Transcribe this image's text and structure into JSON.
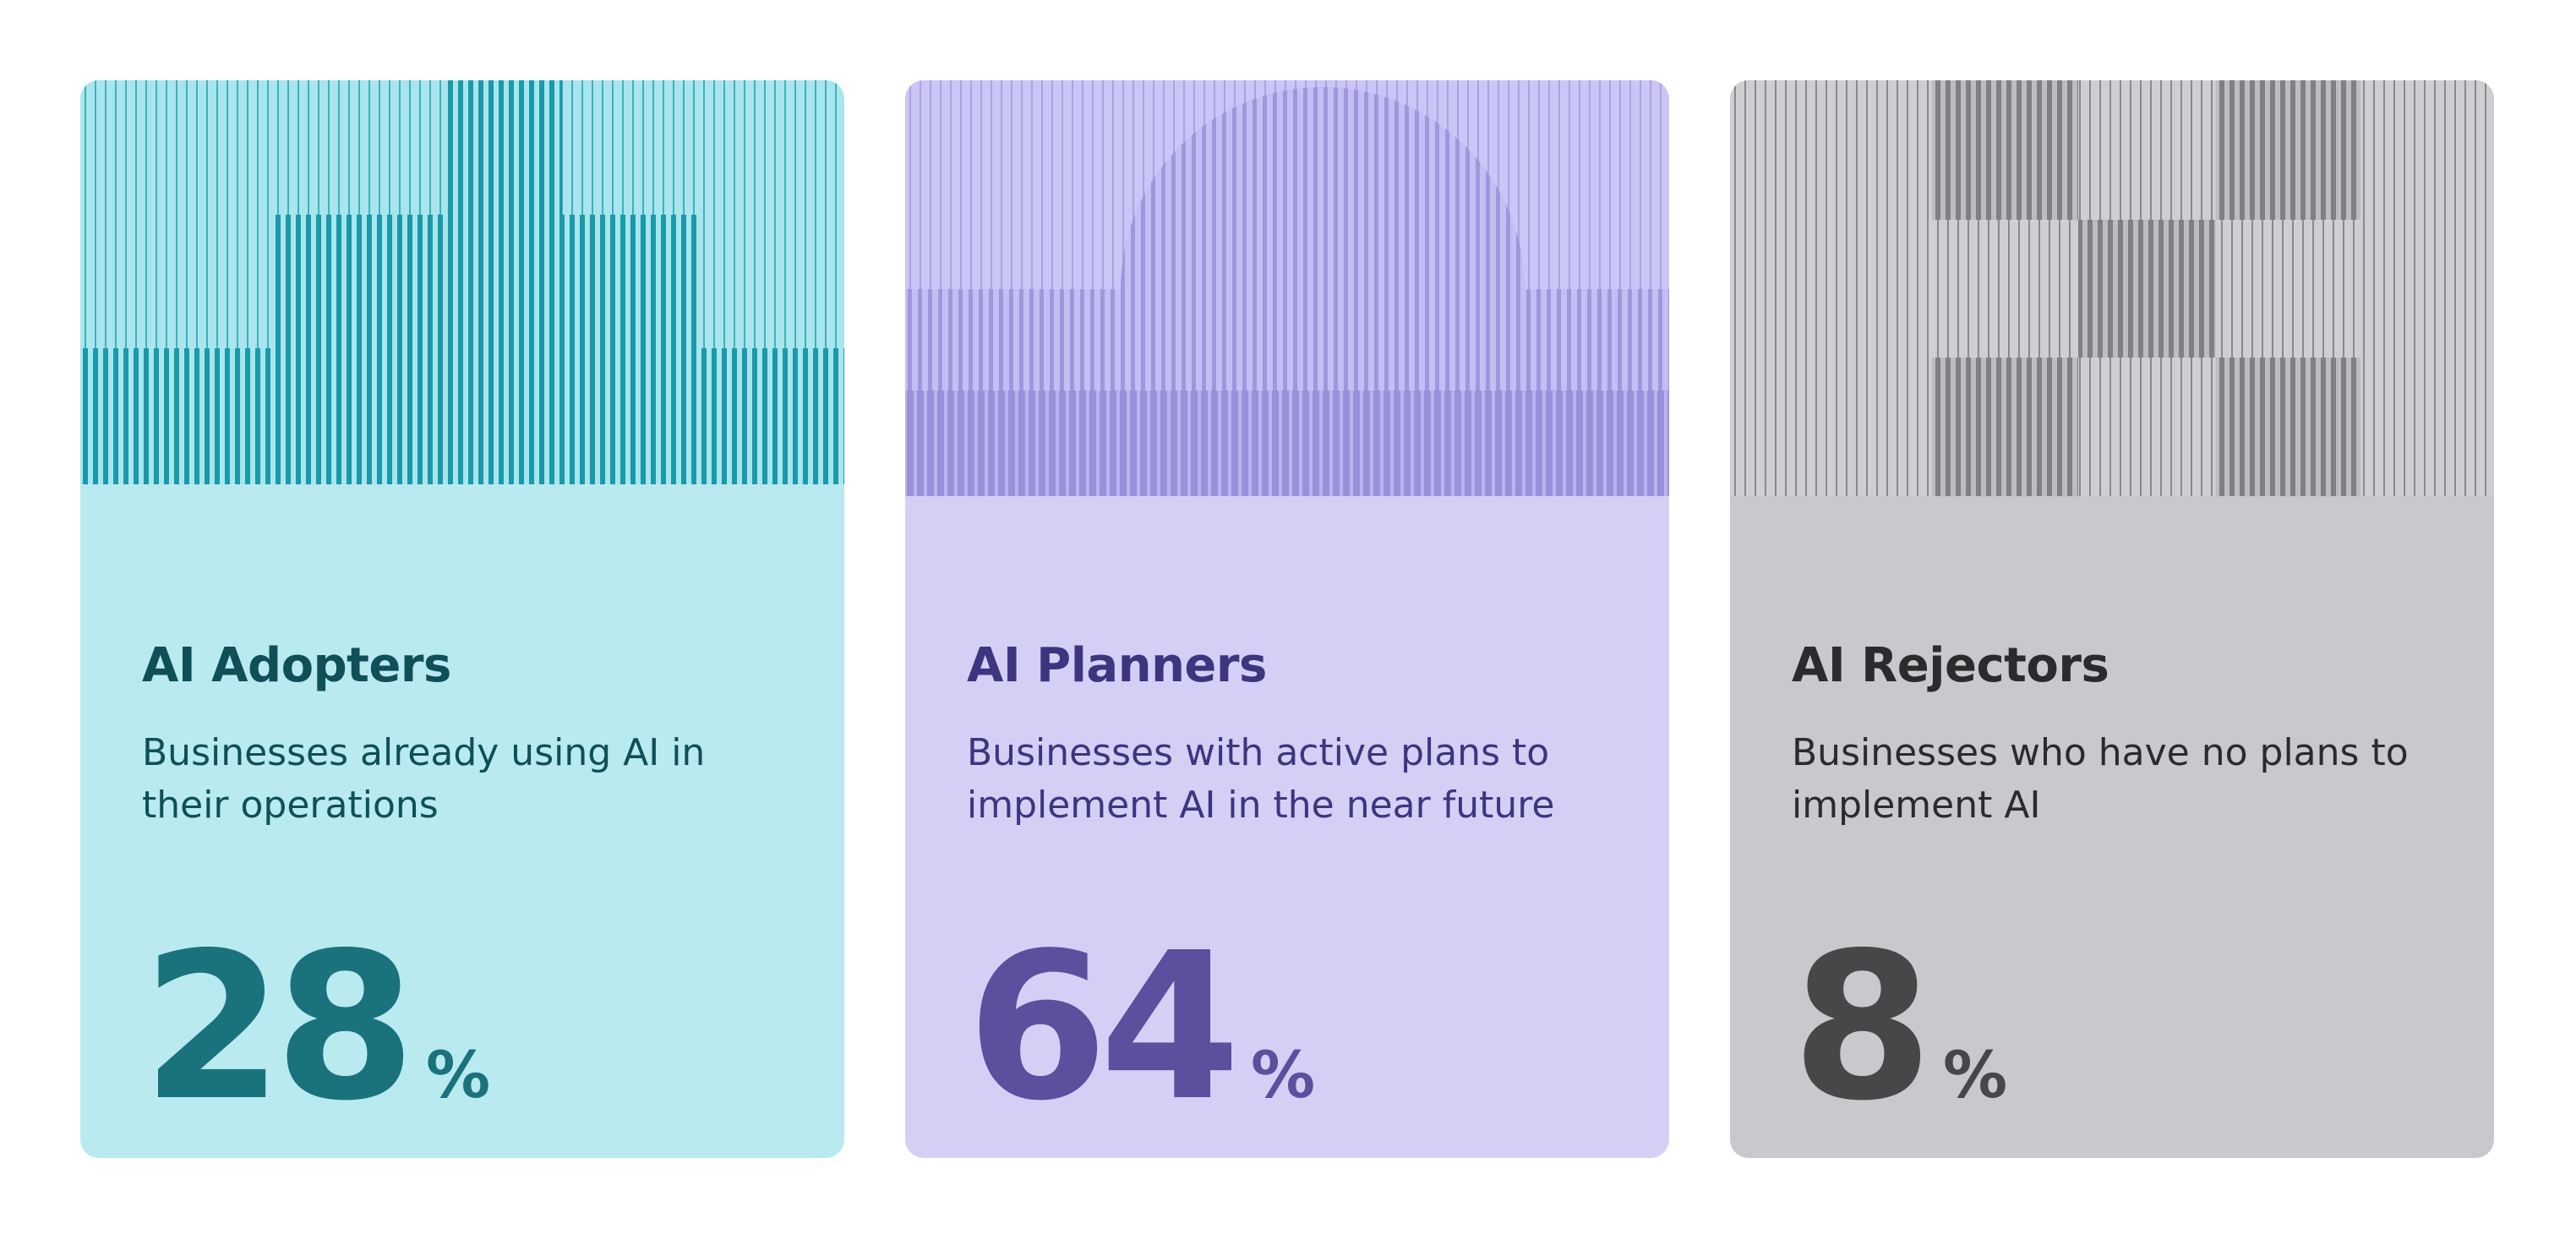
{
  "cards": [
    {
      "title": "AI Adopters",
      "description": "Businesses already using AI in their operations",
      "value": 28,
      "unit": "%"
    },
    {
      "title": "AI Planners",
      "description": "Businesses with active plans to implement AI in the near future",
      "value": 64,
      "unit": "%"
    },
    {
      "title": "AI Rejectors",
      "description": "Businesses who have no plans to implement AI",
      "value": 8,
      "unit": "%"
    }
  ]
}
